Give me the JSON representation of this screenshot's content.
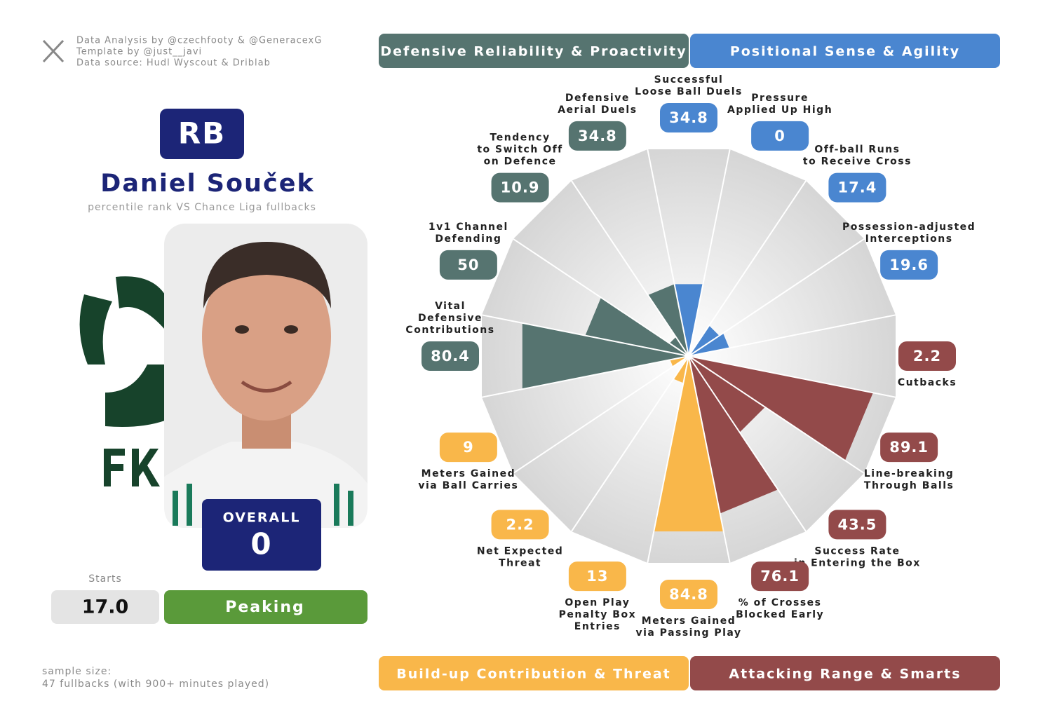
{
  "credits": [
    "Data Analysis by @czechfooty & @GeneracexG",
    "Template by @just__javi",
    "Data source: Hudl Wyscout & Driblab"
  ],
  "player": {
    "position": "RB",
    "name": "Daniel Souček",
    "subtitle": "percentile rank VS Chance Liga fullbacks",
    "overall_label": "OVERALL",
    "overall": 0,
    "starts_label": "Starts",
    "starts": "17.0",
    "form": "Peaking"
  },
  "sample_size": [
    "sample size:",
    "47 fullbacks (with 900+ minutes played)"
  ],
  "chart_data": {
    "type": "pizza",
    "rlim": [
      0,
      100
    ],
    "categories": [
      "Successful\nLoose Ball Duels",
      "Pressure\nApplied Up High",
      "Off-ball Runs\nto Receive Cross",
      "Possession-adjusted\nInterceptions",
      "Cutbacks",
      "Line-breaking\nThrough Balls",
      "Success Rate\nin Entering the Box",
      "% of Crosses\nBlocked Early",
      "Meters Gained\nvia Passing Play",
      "Open Play\nPenalty Box\nEntries",
      "Net Expected\nThreat",
      "Meters Gained\nvia Ball Carries",
      "Vital\nDefensive\nContributions",
      "1v1 Channel\nDefending",
      "Tendency\nto Switch Off\non Defence",
      "Defensive\nAerial Duels"
    ],
    "series": [
      {
        "name": "Defensive Reliability & Proactivity",
        "color": "#567470",
        "values": [
          null,
          null,
          null,
          null,
          null,
          null,
          null,
          null,
          null,
          null,
          null,
          null,
          80.4,
          50,
          10.9,
          34.8
        ]
      },
      {
        "name": "Positional Sense & Agility",
        "color": "#4a86d0",
        "values": [
          34.8,
          0,
          17.4,
          19.6,
          null,
          null,
          null,
          null,
          null,
          null,
          null,
          null,
          null,
          null,
          null,
          null
        ]
      },
      {
        "name": "Build-up Contribution & Threat",
        "color": "#f9b74a",
        "values": [
          null,
          null,
          null,
          null,
          null,
          null,
          null,
          null,
          84.8,
          13,
          2.2,
          9,
          null,
          null,
          null,
          null
        ]
      },
      {
        "name": "Attacking Range & Smarts",
        "color": "#934a4a",
        "values": [
          null,
          null,
          null,
          null,
          2.2,
          89.1,
          43.5,
          76.1,
          null,
          null,
          null,
          null,
          null,
          null,
          null,
          null
        ]
      }
    ]
  }
}
